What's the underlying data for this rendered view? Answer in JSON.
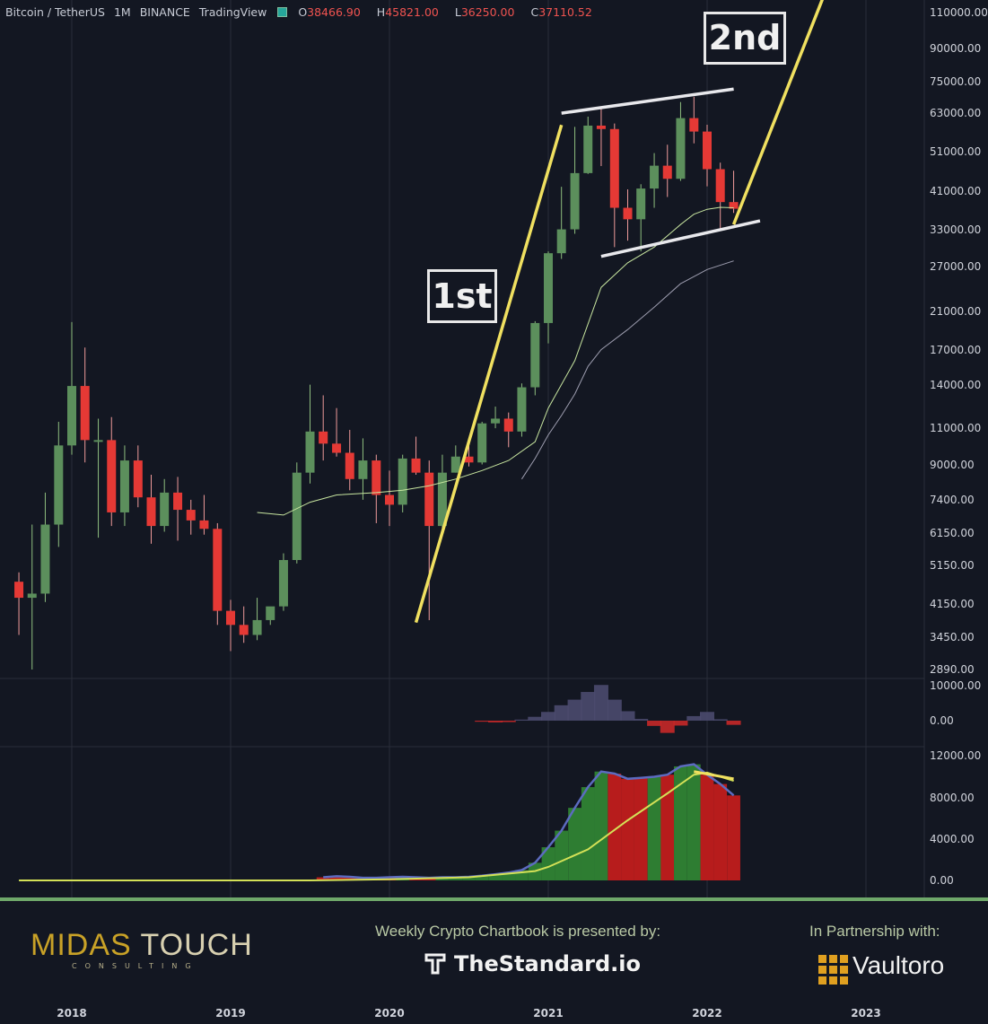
{
  "header": {
    "symbol": "Bitcoin / TetherUS",
    "interval": "1M",
    "exchange": "BINANCE",
    "platform": "TradingView",
    "open_label": "O",
    "open": "38466.90",
    "high_label": "H",
    "high": "45821.00",
    "low_label": "L",
    "low": "36250.00",
    "close_label": "C",
    "close": "37110.52"
  },
  "annotations": {
    "first": "1st",
    "second": "2nd"
  },
  "footer": {
    "logo_a": "MIDAS",
    "logo_b": "TOUCH",
    "logo_sub": "CONSULTING",
    "presented_by": "Weekly Crypto Chartbook is presented by:",
    "sponsor": "TheStandard.io",
    "partner_label": "In Partnership with:",
    "partner": "Vaultoro"
  },
  "colors": {
    "up": "#5c8f5c",
    "down": "#e53935",
    "background": "#131722",
    "trendline": "#f0e060",
    "channel": "#e8e8ec"
  },
  "chart_data": [
    {
      "type": "candlestick",
      "title": "Bitcoin / TetherUS 1M BINANCE",
      "scale": "log",
      "y_ticks": [
        "110000.00",
        "90000.00",
        "75000.00",
        "63000.00",
        "51000.00",
        "41000.00",
        "33000.00",
        "27000.00",
        "21000.00",
        "17000.00",
        "14000.00",
        "11000.00",
        "9000.00",
        "7400.00",
        "6150.00",
        "5150.00",
        "4150.00",
        "3450.00",
        "2890.00"
      ],
      "x_ticks": [
        "2018",
        "2019",
        "2020",
        "2021",
        "2022",
        "2023"
      ],
      "x_tick_months": [
        2018.0,
        2019.0,
        2020.0,
        2021.0,
        2022.0,
        2023.0
      ],
      "candles": [
        {
          "t": 2017.667,
          "o": 4700,
          "h": 4950,
          "l": 3500,
          "c": 4300
        },
        {
          "t": 2017.75,
          "o": 4300,
          "h": 6450,
          "l": 2890,
          "c": 4400
        },
        {
          "t": 2017.833,
          "o": 4400,
          "h": 7700,
          "l": 4200,
          "c": 6450
        },
        {
          "t": 2017.917,
          "o": 6450,
          "h": 11400,
          "l": 5700,
          "c": 10000
        },
        {
          "t": 2018.0,
          "o": 10000,
          "h": 19800,
          "l": 9500,
          "c": 13900
        },
        {
          "t": 2018.083,
          "o": 13900,
          "h": 17200,
          "l": 9100,
          "c": 10300
        },
        {
          "t": 2018.167,
          "o": 10300,
          "h": 11600,
          "l": 6000,
          "c": 10300
        },
        {
          "t": 2018.25,
          "o": 10300,
          "h": 11700,
          "l": 6400,
          "c": 6900
        },
        {
          "t": 2018.333,
          "o": 6900,
          "h": 10000,
          "l": 6400,
          "c": 9200
        },
        {
          "t": 2018.417,
          "o": 9200,
          "h": 10000,
          "l": 7100,
          "c": 7500
        },
        {
          "t": 2018.5,
          "o": 7500,
          "h": 8500,
          "l": 5800,
          "c": 6400
        },
        {
          "t": 2018.583,
          "o": 6400,
          "h": 8300,
          "l": 6200,
          "c": 7700
        },
        {
          "t": 2018.667,
          "o": 7700,
          "h": 8400,
          "l": 5900,
          "c": 7000
        },
        {
          "t": 2018.75,
          "o": 7000,
          "h": 7400,
          "l": 6100,
          "c": 6600
        },
        {
          "t": 2018.833,
          "o": 6600,
          "h": 7600,
          "l": 6100,
          "c": 6300
        },
        {
          "t": 2018.917,
          "o": 6300,
          "h": 6500,
          "l": 3700,
          "c": 4000
        },
        {
          "t": 2019.0,
          "o": 4000,
          "h": 4250,
          "l": 3200,
          "c": 3700
        },
        {
          "t": 2019.083,
          "o": 3700,
          "h": 4100,
          "l": 3350,
          "c": 3500
        },
        {
          "t": 2019.167,
          "o": 3500,
          "h": 4300,
          "l": 3400,
          "c": 3800
        },
        {
          "t": 2019.25,
          "o": 3800,
          "h": 4000,
          "l": 3700,
          "c": 4100
        },
        {
          "t": 2019.333,
          "o": 4100,
          "h": 5500,
          "l": 4000,
          "c": 5300
        },
        {
          "t": 2019.417,
          "o": 5300,
          "h": 9100,
          "l": 5200,
          "c": 8600
        },
        {
          "t": 2019.5,
          "o": 8600,
          "h": 14000,
          "l": 8100,
          "c": 10800
        },
        {
          "t": 2019.583,
          "o": 10800,
          "h": 13200,
          "l": 9200,
          "c": 10100
        },
        {
          "t": 2019.667,
          "o": 10100,
          "h": 12300,
          "l": 9400,
          "c": 9600
        },
        {
          "t": 2019.75,
          "o": 9600,
          "h": 10900,
          "l": 7800,
          "c": 8300
        },
        {
          "t": 2019.833,
          "o": 8300,
          "h": 10400,
          "l": 7400,
          "c": 9200
        },
        {
          "t": 2019.917,
          "o": 9200,
          "h": 9500,
          "l": 6500,
          "c": 7600
        },
        {
          "t": 2020.0,
          "o": 7600,
          "h": 8700,
          "l": 6400,
          "c": 7200
        },
        {
          "t": 2020.083,
          "o": 7200,
          "h": 9500,
          "l": 6900,
          "c": 9300
        },
        {
          "t": 2020.167,
          "o": 9300,
          "h": 10500,
          "l": 8500,
          "c": 8600
        },
        {
          "t": 2020.25,
          "o": 8600,
          "h": 9200,
          "l": 3800,
          "c": 6400
        },
        {
          "t": 2020.333,
          "o": 6400,
          "h": 9500,
          "l": 6200,
          "c": 8600
        },
        {
          "t": 2020.417,
          "o": 8600,
          "h": 10000,
          "l": 8600,
          "c": 9400
        },
        {
          "t": 2020.5,
          "o": 9400,
          "h": 10400,
          "l": 8900,
          "c": 9100
        },
        {
          "t": 2020.583,
          "o": 9100,
          "h": 11400,
          "l": 9000,
          "c": 11300
        },
        {
          "t": 2020.667,
          "o": 11300,
          "h": 12400,
          "l": 11000,
          "c": 11600
        },
        {
          "t": 2020.75,
          "o": 11600,
          "h": 12000,
          "l": 9900,
          "c": 10800
        },
        {
          "t": 2020.833,
          "o": 10800,
          "h": 14100,
          "l": 10500,
          "c": 13800
        },
        {
          "t": 2020.917,
          "o": 13800,
          "h": 19900,
          "l": 13200,
          "c": 19700
        },
        {
          "t": 2021.0,
          "o": 19700,
          "h": 29300,
          "l": 17600,
          "c": 29000
        },
        {
          "t": 2021.083,
          "o": 29000,
          "h": 41900,
          "l": 28100,
          "c": 33100
        },
        {
          "t": 2021.167,
          "o": 33100,
          "h": 58400,
          "l": 32300,
          "c": 45200
        },
        {
          "t": 2021.25,
          "o": 45200,
          "h": 61800,
          "l": 45000,
          "c": 58800
        },
        {
          "t": 2021.333,
          "o": 58800,
          "h": 64800,
          "l": 47000,
          "c": 57700
        },
        {
          "t": 2021.417,
          "o": 57700,
          "h": 59500,
          "l": 30000,
          "c": 37300
        },
        {
          "t": 2021.5,
          "o": 37300,
          "h": 41300,
          "l": 31100,
          "c": 35000
        },
        {
          "t": 2021.583,
          "o": 35000,
          "h": 42500,
          "l": 29300,
          "c": 41500
        },
        {
          "t": 2021.667,
          "o": 41500,
          "h": 50500,
          "l": 37300,
          "c": 47100
        },
        {
          "t": 2021.75,
          "o": 47100,
          "h": 52900,
          "l": 39600,
          "c": 43800
        },
        {
          "t": 2021.833,
          "o": 43800,
          "h": 67000,
          "l": 43300,
          "c": 61300
        },
        {
          "t": 2021.917,
          "o": 61300,
          "h": 69000,
          "l": 53300,
          "c": 56900
        },
        {
          "t": 2022.0,
          "o": 56900,
          "h": 59100,
          "l": 42000,
          "c": 46200
        },
        {
          "t": 2022.083,
          "o": 46200,
          "h": 47900,
          "l": 33000,
          "c": 38500
        },
        {
          "t": 2022.167,
          "o": 38500,
          "h": 45800,
          "l": 36250,
          "c": 37110
        }
      ],
      "ma_fast": [
        [
          2019.167,
          6900
        ],
        [
          2019.333,
          6800
        ],
        [
          2019.5,
          7300
        ],
        [
          2019.667,
          7600
        ],
        [
          2019.917,
          7700
        ],
        [
          2020.083,
          7800
        ],
        [
          2020.25,
          8000
        ],
        [
          2020.417,
          8300
        ],
        [
          2020.583,
          8700
        ],
        [
          2020.75,
          9200
        ],
        [
          2020.917,
          10200
        ],
        [
          2021.0,
          12300
        ],
        [
          2021.167,
          16000
        ],
        [
          2021.333,
          24000
        ],
        [
          2021.5,
          27500
        ],
        [
          2021.667,
          30000
        ],
        [
          2021.833,
          34000
        ],
        [
          2021.917,
          36000
        ],
        [
          2022.0,
          37000
        ],
        [
          2022.083,
          37400
        ],
        [
          2022.167,
          37300
        ]
      ],
      "ma_slow": [
        [
          2020.833,
          8300
        ],
        [
          2020.917,
          9300
        ],
        [
          2021.0,
          10600
        ],
        [
          2021.083,
          11800
        ],
        [
          2021.167,
          13300
        ],
        [
          2021.25,
          15500
        ],
        [
          2021.333,
          17000
        ],
        [
          2021.5,
          19000
        ],
        [
          2021.667,
          21500
        ],
        [
          2021.833,
          24500
        ],
        [
          2022.0,
          26500
        ],
        [
          2022.167,
          27800
        ]
      ],
      "trendlines": [
        {
          "name": "1st",
          "from": [
            2020.167,
            3750
          ],
          "to": [
            2021.083,
            59000
          ]
        },
        {
          "name": "2nd",
          "from": [
            2022.167,
            34000
          ],
          "to": [
            2022.75,
            125000
          ]
        }
      ],
      "channel": [
        {
          "from": [
            2021.083,
            63000
          ],
          "to": [
            2022.167,
            72000
          ]
        },
        {
          "from": [
            2021.333,
            28500
          ],
          "to": [
            2022.333,
            34700
          ]
        }
      ]
    },
    {
      "type": "bar",
      "title": "",
      "y_ticks": [
        "10000.00",
        "0.00"
      ],
      "values": [
        [
          2020.583,
          -300
        ],
        [
          2020.667,
          -500
        ],
        [
          2020.75,
          -400
        ],
        [
          2020.833,
          300
        ],
        [
          2020.917,
          1100
        ],
        [
          2021.0,
          2500
        ],
        [
          2021.083,
          4400
        ],
        [
          2021.167,
          6000
        ],
        [
          2021.25,
          8200
        ],
        [
          2021.333,
          10200
        ],
        [
          2021.417,
          6000
        ],
        [
          2021.5,
          2700
        ],
        [
          2021.583,
          500
        ],
        [
          2021.667,
          -1500
        ],
        [
          2021.75,
          -3500
        ],
        [
          2021.833,
          -1400
        ],
        [
          2021.917,
          1300
        ],
        [
          2022.0,
          2500
        ],
        [
          2022.083,
          400
        ],
        [
          2022.167,
          -1200
        ]
      ]
    },
    {
      "type": "bar",
      "title": "",
      "y_ticks": [
        "12000.00",
        "8000.00",
        "4000.00",
        "0.00"
      ],
      "values": [
        [
          2019.583,
          300
        ],
        [
          2019.667,
          400
        ],
        [
          2019.75,
          350
        ],
        [
          2019.833,
          250
        ],
        [
          2019.917,
          250
        ],
        [
          2020.0,
          300
        ],
        [
          2020.083,
          350
        ],
        [
          2020.167,
          300
        ],
        [
          2020.25,
          250
        ],
        [
          2020.333,
          300
        ],
        [
          2020.417,
          300
        ],
        [
          2020.5,
          350
        ],
        [
          2020.583,
          450
        ],
        [
          2020.667,
          600
        ],
        [
          2020.75,
          750
        ],
        [
          2020.833,
          1000
        ],
        [
          2020.917,
          1700
        ],
        [
          2021.0,
          3200
        ],
        [
          2021.083,
          4800
        ],
        [
          2021.167,
          7000
        ],
        [
          2021.25,
          9000
        ],
        [
          2021.333,
          10500
        ],
        [
          2021.417,
          10300
        ],
        [
          2021.5,
          9800
        ],
        [
          2021.583,
          9900
        ],
        [
          2021.667,
          10000
        ],
        [
          2021.75,
          10200
        ],
        [
          2021.833,
          11000
        ],
        [
          2021.917,
          11200
        ],
        [
          2022.0,
          10200
        ],
        [
          2022.083,
          9300
        ],
        [
          2022.167,
          8200
        ]
      ],
      "bar_colors": [
        "down",
        "down",
        "down",
        "down",
        "down",
        "down",
        "up",
        "down",
        "down",
        "up",
        "up",
        "up",
        "up",
        "up",
        "up",
        "up",
        "up",
        "up",
        "up",
        "up",
        "up",
        "up",
        "down",
        "down",
        "down",
        "up",
        "down",
        "up",
        "up",
        "down",
        "down",
        "down"
      ],
      "signal_line": [
        [
          2017.667,
          0
        ],
        [
          2019.5,
          0
        ],
        [
          2020.0,
          100
        ],
        [
          2020.5,
          300
        ],
        [
          2020.917,
          900
        ],
        [
          2021.0,
          1300
        ],
        [
          2021.25,
          3000
        ],
        [
          2021.5,
          5800
        ],
        [
          2021.75,
          8400
        ],
        [
          2021.917,
          10200
        ],
        [
          2022.0,
          10400
        ],
        [
          2022.167,
          9600
        ]
      ],
      "divergence": {
        "from": [
          2021.917,
          10500
        ],
        "to": [
          2022.167,
          9800
        ]
      }
    }
  ]
}
